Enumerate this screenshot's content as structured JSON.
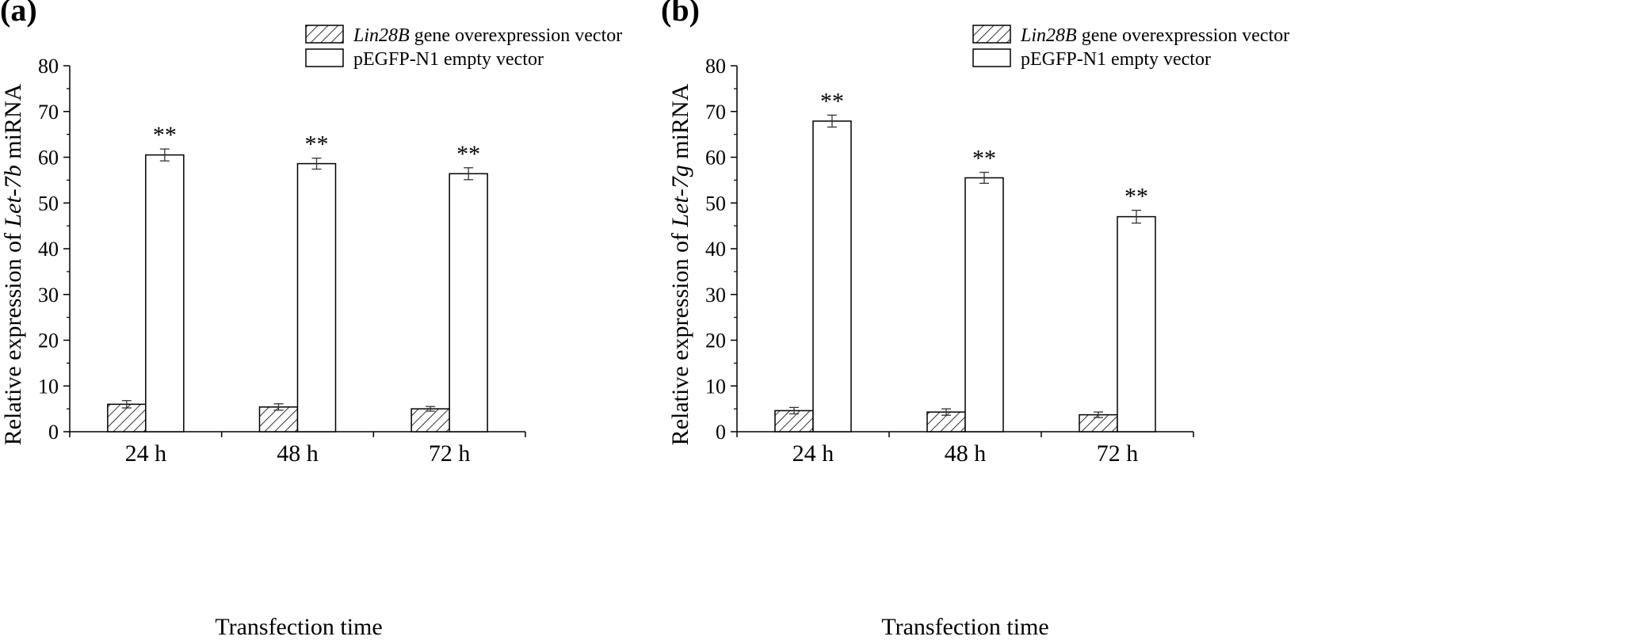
{
  "chart_data": [
    {
      "type": "bar",
      "panel_label": "(a)",
      "categories": [
        "24 h",
        "48 h",
        "72 h"
      ],
      "xlabel": "Transfection time",
      "ylabel": {
        "prefix": "Relative expression of ",
        "italic": "Let-7b",
        "suffix": " miRNA"
      },
      "ylim": [
        0,
        80
      ],
      "yticks": [
        0,
        10,
        20,
        30,
        40,
        50,
        60,
        70,
        80
      ],
      "legend": {
        "placement": "top-right"
      },
      "series": [
        {
          "name": {
            "italic": "Lin28B",
            "text": " gene overexpression vector"
          },
          "fill": "hatched",
          "values": [
            6.0,
            5.4,
            5.0
          ],
          "errors": [
            0.8,
            0.7,
            0.5
          ]
        },
        {
          "name": {
            "italic": "",
            "text": "pEGFP-N1 empty vector"
          },
          "fill": "white",
          "values": [
            60.5,
            58.6,
            56.4
          ],
          "errors": [
            1.3,
            1.2,
            1.3
          ],
          "annotations": [
            "**",
            "**",
            "**"
          ]
        }
      ]
    },
    {
      "type": "bar",
      "panel_label": "(b)",
      "categories": [
        "24 h",
        "48 h",
        "72 h"
      ],
      "xlabel": "Transfection time",
      "ylabel": {
        "prefix": "Relative expression of ",
        "italic": "Let-7g",
        "suffix": " miRNA"
      },
      "ylim": [
        0,
        80
      ],
      "yticks": [
        0,
        10,
        20,
        30,
        40,
        50,
        60,
        70,
        80
      ],
      "legend": {
        "placement": "top-right"
      },
      "series": [
        {
          "name": {
            "italic": "Lin28B",
            "text": " gene overexpression vector"
          },
          "fill": "hatched",
          "values": [
            4.6,
            4.3,
            3.7
          ],
          "errors": [
            0.7,
            0.7,
            0.6
          ]
        },
        {
          "name": {
            "italic": "",
            "text": "pEGFP-N1 empty vector"
          },
          "fill": "white",
          "values": [
            67.9,
            55.5,
            47.0
          ],
          "errors": [
            1.3,
            1.2,
            1.4
          ],
          "annotations": [
            "**",
            "**",
            "**"
          ]
        }
      ]
    }
  ]
}
